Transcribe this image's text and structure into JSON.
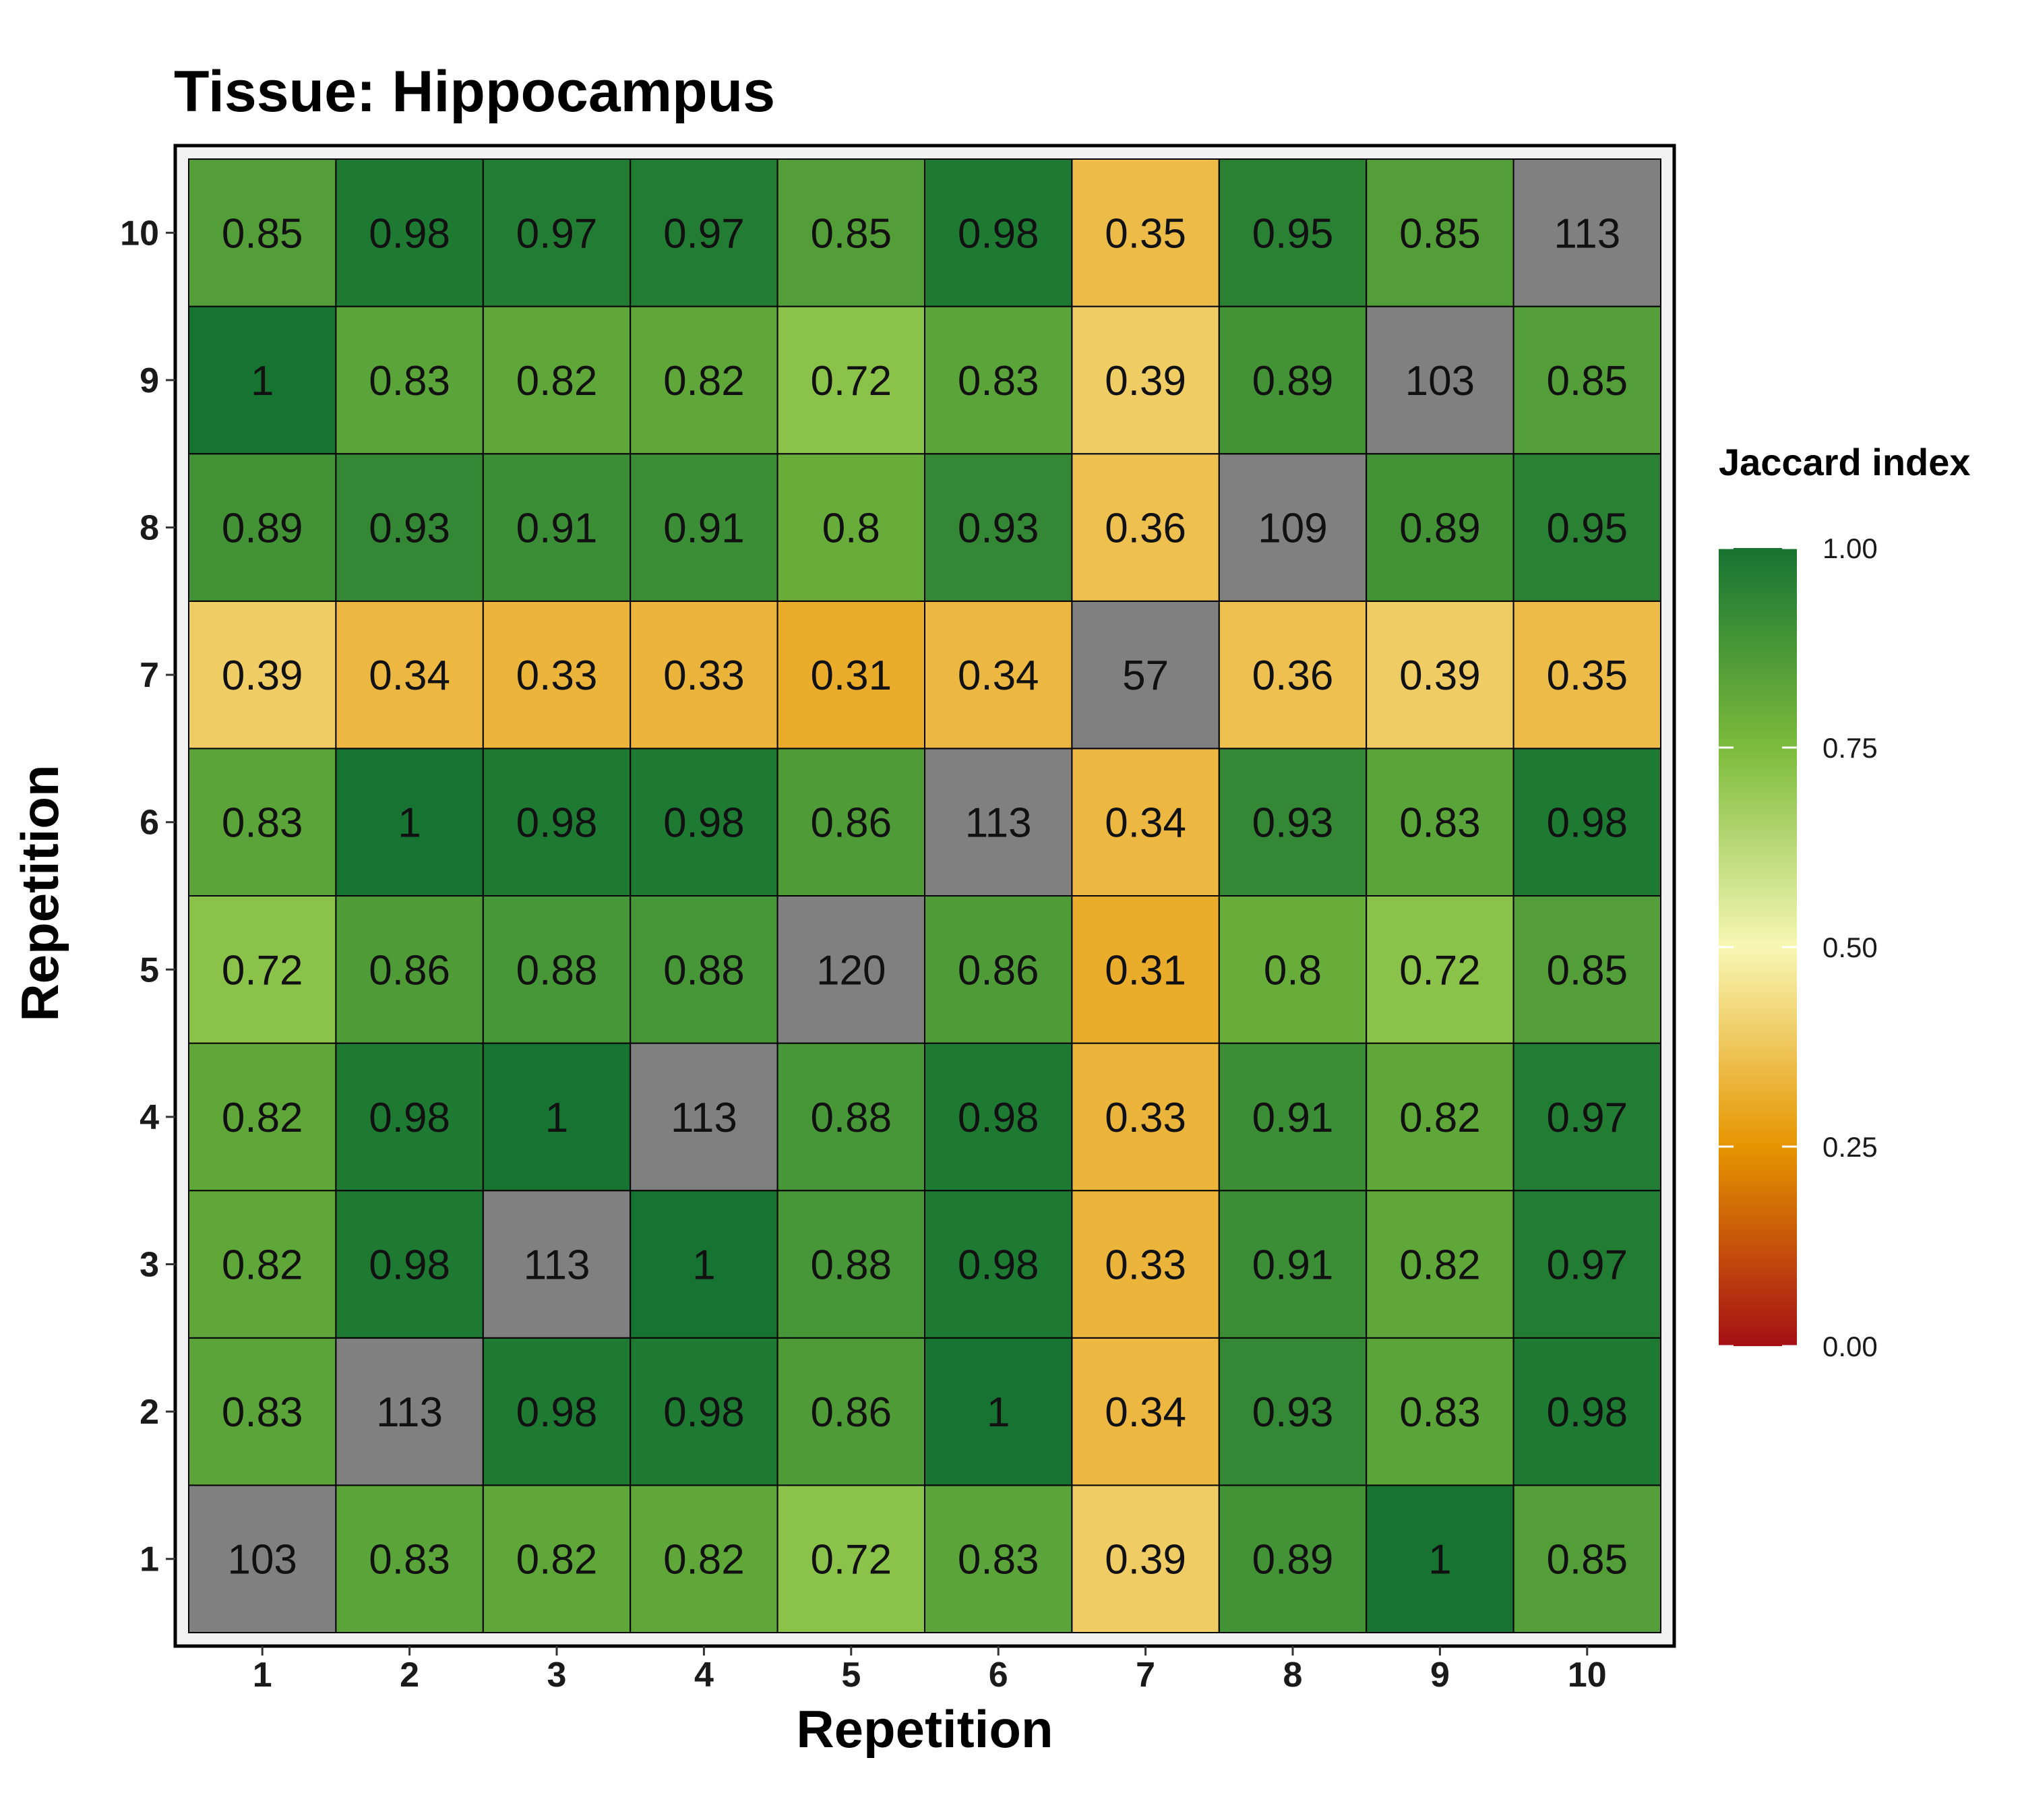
{
  "chart_data": {
    "type": "heatmap",
    "title": "Tissue: Hippocampus",
    "xlabel": "Repetition",
    "ylabel": "Repetition",
    "x": [
      "1",
      "2",
      "3",
      "4",
      "5",
      "6",
      "7",
      "8",
      "9",
      "10"
    ],
    "y": [
      "1",
      "2",
      "3",
      "4",
      "5",
      "6",
      "7",
      "8",
      "9",
      "10"
    ],
    "rows": [
      {
        "y": "1",
        "values": [
          103,
          0.83,
          0.82,
          0.82,
          0.72,
          0.83,
          0.39,
          0.89,
          1,
          0.85
        ]
      },
      {
        "y": "2",
        "values": [
          0.83,
          113,
          0.98,
          0.98,
          0.86,
          1,
          0.34,
          0.93,
          0.83,
          0.98
        ]
      },
      {
        "y": "3",
        "values": [
          0.82,
          0.98,
          113,
          1,
          0.88,
          0.98,
          0.33,
          0.91,
          0.82,
          0.97
        ]
      },
      {
        "y": "4",
        "values": [
          0.82,
          0.98,
          1,
          113,
          0.88,
          0.98,
          0.33,
          0.91,
          0.82,
          0.97
        ]
      },
      {
        "y": "5",
        "values": [
          0.72,
          0.86,
          0.88,
          0.88,
          120,
          0.86,
          0.31,
          0.8,
          0.72,
          0.85
        ]
      },
      {
        "y": "6",
        "values": [
          0.83,
          1,
          0.98,
          0.98,
          0.86,
          113,
          0.34,
          0.93,
          0.83,
          0.98
        ]
      },
      {
        "y": "7",
        "values": [
          0.39,
          0.34,
          0.33,
          0.33,
          0.31,
          0.34,
          57,
          0.36,
          0.39,
          0.35
        ]
      },
      {
        "y": "8",
        "values": [
          0.89,
          0.93,
          0.91,
          0.91,
          0.8,
          0.93,
          0.36,
          109,
          0.89,
          0.95
        ]
      },
      {
        "y": "9",
        "values": [
          1,
          0.83,
          0.82,
          0.82,
          0.72,
          0.83,
          0.39,
          0.89,
          103,
          0.85
        ]
      },
      {
        "y": "10",
        "values": [
          0.85,
          0.98,
          0.97,
          0.97,
          0.85,
          0.98,
          0.35,
          0.95,
          0.85,
          113
        ]
      }
    ],
    "diagonal_color": "#808080",
    "legend": {
      "title": "Jaccard index",
      "ticks": [
        "1.00",
        "0.75",
        "0.50",
        "0.25",
        "0.00"
      ],
      "range": [
        0,
        1
      ],
      "colors": [
        {
          "value": 0.0,
          "color": "#a50f15"
        },
        {
          "value": 0.25,
          "color": "#e69500"
        },
        {
          "value": 0.5,
          "color": "#f7f7b4"
        },
        {
          "value": 0.75,
          "color": "#7cbb3c"
        },
        {
          "value": 1.0,
          "color": "#167332"
        }
      ],
      "placement": "right"
    },
    "grid": false
  }
}
